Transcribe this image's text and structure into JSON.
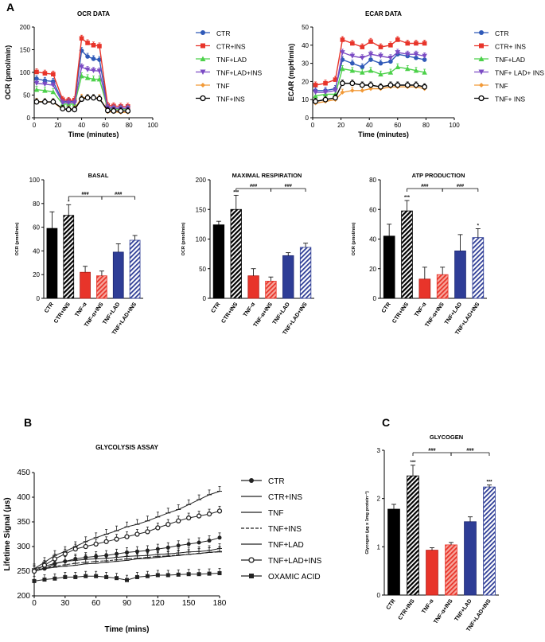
{
  "colors": {
    "black": "#000000",
    "blue": "#2f59b8",
    "red": "#e8342a",
    "green": "#4cd14a",
    "purple": "#7b4bc4",
    "orange": "#f29a38",
    "lightred": "#f7a79d",
    "lightblue": "#a9b8e6",
    "darkblue": "#2e3d96",
    "gray": "#555555"
  },
  "panels": {
    "a": "A",
    "b": "B",
    "c": "C"
  },
  "legends": {
    "ocr": [
      {
        "label": "CTR",
        "color": "#2f59b8",
        "marker": "circle"
      },
      {
        "label": "CTR+INS",
        "color": "#e8342a",
        "marker": "square"
      },
      {
        "label": "TNF+LAD",
        "color": "#4cd14a",
        "marker": "triangle-up"
      },
      {
        "label": "TNF+LAD+INS",
        "color": "#7b4bc4",
        "marker": "triangle-down"
      },
      {
        "label": "TNF",
        "color": "#f29a38",
        "marker": "diamond"
      },
      {
        "label": "TNF+INS",
        "color": "#000000",
        "marker": "open-circle"
      }
    ],
    "ecar": [
      {
        "label": "CTR",
        "color": "#2f59b8",
        "marker": "circle"
      },
      {
        "label": "CTR+ INS",
        "color": "#e8342a",
        "marker": "square"
      },
      {
        "label": "TNF+LAD",
        "color": "#4cd14a",
        "marker": "triangle-up"
      },
      {
        "label": "TNF+ LAD+ INS",
        "color": "#7b4bc4",
        "marker": "triangle-down"
      },
      {
        "label": "TNF",
        "color": "#f29a38",
        "marker": "diamond"
      },
      {
        "label": "TNF+ INS",
        "color": "#000000",
        "marker": "open-circle"
      }
    ],
    "glyco": [
      {
        "label": "CTR",
        "marker": "dot"
      },
      {
        "label": "CTR+INS",
        "marker": "line"
      },
      {
        "label": "TNF",
        "marker": "line"
      },
      {
        "label": "TNF+INS",
        "marker": "dash"
      },
      {
        "label": "TNF+LAD",
        "marker": "line"
      },
      {
        "label": "TNF+LAD+INS",
        "marker": "open-circle"
      },
      {
        "label": "OXAMIC ACID",
        "marker": "square"
      }
    ]
  },
  "chart_data": [
    {
      "id": "ocr",
      "type": "line",
      "title": "OCR DATA",
      "xlabel": "Time (minutes)",
      "ylabel": "OCR (pmol/min)",
      "xlim": [
        0,
        100
      ],
      "ylim": [
        0,
        200
      ],
      "xticks": [
        0,
        20,
        40,
        60,
        80,
        100
      ],
      "yticks": [
        0,
        50,
        100,
        150,
        200
      ],
      "x": [
        2,
        9,
        16,
        24,
        29,
        34,
        40,
        45,
        50,
        55,
        62,
        67,
        73,
        79
      ],
      "series": [
        {
          "name": "CTR",
          "color": "#2f59b8",
          "marker": "circle",
          "values": [
            86,
            82,
            80,
            36,
            36,
            36,
            148,
            135,
            130,
            128,
            23,
            22,
            21,
            20
          ]
        },
        {
          "name": "CTR+INS",
          "color": "#e8342a",
          "marker": "square",
          "values": [
            101,
            98,
            96,
            40,
            38,
            39,
            175,
            165,
            160,
            158,
            27,
            26,
            25,
            25
          ]
        },
        {
          "name": "TNF+LAD",
          "color": "#4cd14a",
          "marker": "triangle-up",
          "values": [
            62,
            60,
            57,
            30,
            30,
            30,
            92,
            88,
            85,
            85,
            20,
            19,
            19,
            19
          ]
        },
        {
          "name": "TNF+LAD+INS",
          "color": "#7b4bc4",
          "marker": "triangle-down",
          "values": [
            76,
            74,
            72,
            33,
            33,
            33,
            112,
            106,
            104,
            103,
            22,
            21,
            21,
            21
          ]
        },
        {
          "name": "TNF",
          "color": "#f29a38",
          "marker": "diamond",
          "values": [
            36,
            35,
            34,
            19,
            19,
            19,
            45,
            44,
            44,
            44,
            13,
            13,
            12,
            12
          ]
        },
        {
          "name": "TNF+INS",
          "color": "#000000",
          "marker": "open-circle",
          "values": [
            35,
            35,
            35,
            20,
            18,
            18,
            41,
            44,
            44,
            42,
            16,
            15,
            15,
            15
          ]
        }
      ]
    },
    {
      "id": "ecar",
      "type": "line",
      "title": "ECAR DATA",
      "xlabel": "Time (minutes)",
      "ylabel": "ECAR (mpH/min)",
      "xlim": [
        0,
        100
      ],
      "ylim": [
        0,
        50
      ],
      "xticks": [
        0,
        20,
        40,
        60,
        80,
        100
      ],
      "yticks": [
        0,
        10,
        20,
        30,
        40,
        50
      ],
      "x": [
        2,
        9,
        16,
        21,
        28,
        35,
        41,
        48,
        55,
        60,
        67,
        73,
        79
      ],
      "series": [
        {
          "name": "CTR",
          "color": "#2f59b8",
          "marker": "circle",
          "values": [
            15,
            15,
            16,
            32,
            30,
            28,
            32,
            30,
            31,
            35,
            34,
            33,
            32
          ]
        },
        {
          "name": "CTR+ INS",
          "color": "#e8342a",
          "marker": "square",
          "values": [
            18,
            19,
            21,
            43,
            41,
            39,
            42,
            39,
            40,
            43,
            41,
            41,
            41
          ]
        },
        {
          "name": "TNF+LAD",
          "color": "#4cd14a",
          "marker": "triangle-up",
          "values": [
            12,
            13,
            13,
            27,
            26,
            25,
            26,
            24,
            25,
            28,
            27,
            26,
            25
          ]
        },
        {
          "name": "TNF+ LAD+ INS",
          "color": "#7b4bc4",
          "marker": "triangle-down",
          "values": [
            14,
            14,
            15,
            36,
            34,
            33,
            35,
            34,
            33,
            36,
            35,
            35,
            34
          ]
        },
        {
          "name": "TNF",
          "color": "#f29a38",
          "marker": "diamond",
          "values": [
            8,
            9,
            10,
            14,
            15,
            15,
            16,
            16,
            17,
            17,
            17,
            17,
            16
          ]
        },
        {
          "name": "TNF+ INS",
          "color": "#000000",
          "marker": "open-circle",
          "values": [
            9,
            10,
            11,
            19,
            19,
            18,
            18,
            17,
            18,
            18,
            18,
            18,
            17
          ]
        }
      ]
    },
    {
      "id": "basal",
      "type": "bar",
      "title": "BASAL",
      "ylabel": "OCR (pmol/min)",
      "ylim": [
        0,
        100
      ],
      "yticks": [
        0,
        20,
        40,
        60,
        80,
        100
      ],
      "categories": [
        "CTR",
        "CTR+INS",
        "TNF-α",
        "TNF-α+INS",
        "TNF+LAD",
        "TNF+LAD+INS"
      ],
      "values": [
        59,
        70,
        22,
        19,
        39,
        49
      ],
      "errors": [
        14,
        9,
        5,
        4,
        7,
        4
      ],
      "styles": [
        "black",
        "black-hatch",
        "red",
        "red-hatch",
        "blue",
        "blue-hatch"
      ],
      "marks": [
        "",
        "*",
        "",
        "",
        "",
        ""
      ],
      "brackets": [
        {
          "label": "###",
          "from": 1,
          "to": 3
        },
        {
          "label": "###",
          "from": 3,
          "to": 5
        }
      ]
    },
    {
      "id": "maxresp",
      "type": "bar",
      "title": "MAXIMAL RESPIRATION",
      "ylabel": "OCR (pmol/min)",
      "ylim": [
        0,
        200
      ],
      "yticks": [
        0,
        50,
        100,
        150,
        200
      ],
      "categories": [
        "CTR",
        "CTR+INS",
        "TNF-α",
        "TNF-α+INS",
        "TNF+LAD",
        "TNF+LAD+INS"
      ],
      "values": [
        124,
        150,
        38,
        29,
        72,
        86
      ],
      "errors": [
        6,
        24,
        12,
        7,
        5,
        7
      ],
      "styles": [
        "black",
        "black-hatch",
        "red",
        "red-hatch",
        "blue",
        "blue-hatch"
      ],
      "marks": [
        "",
        "***",
        "",
        "",
        "",
        ""
      ],
      "brackets": [
        {
          "label": "###",
          "from": 1,
          "to": 3
        },
        {
          "label": "###",
          "from": 3,
          "to": 5
        }
      ]
    },
    {
      "id": "atp",
      "type": "bar",
      "title": "ATP PRODUCTION",
      "ylabel": "OCR (pmol/min)",
      "ylim": [
        0,
        80
      ],
      "yticks": [
        0,
        20,
        40,
        60,
        80
      ],
      "categories": [
        "CTR",
        "CTR+INS",
        "TNF-α",
        "TNF-α+INS",
        "TNF+LAD",
        "TNF+LAD+INS"
      ],
      "values": [
        42,
        59,
        13,
        16,
        32,
        41
      ],
      "errors": [
        8,
        7,
        8,
        5,
        11,
        6
      ],
      "styles": [
        "black",
        "black-hatch",
        "red",
        "red-hatch",
        "blue",
        "blue-hatch"
      ],
      "marks": [
        "",
        "***",
        "",
        "",
        "",
        "*"
      ],
      "brackets": [
        {
          "label": "###",
          "from": 1,
          "to": 3
        },
        {
          "label": "###",
          "from": 3,
          "to": 5
        }
      ]
    },
    {
      "id": "glycolysis",
      "type": "line",
      "title": "GLYCOLYSIS ASSAY",
      "xlabel": "Time (mins)",
      "ylabel": "Lifetime Signal (μs)",
      "xlim": [
        0,
        180
      ],
      "ylim": [
        200,
        450
      ],
      "xticks": [
        0,
        30,
        60,
        90,
        120,
        150,
        180
      ],
      "yticks": [
        200,
        250,
        300,
        350,
        400,
        450
      ],
      "x": [
        0,
        10,
        20,
        30,
        40,
        50,
        60,
        70,
        80,
        90,
        100,
        110,
        120,
        130,
        140,
        150,
        160,
        170,
        180
      ],
      "series": [
        {
          "name": "CTR",
          "marker": "dot",
          "values": [
            250,
            255,
            265,
            270,
            275,
            278,
            280,
            282,
            285,
            288,
            290,
            292,
            295,
            298,
            302,
            305,
            308,
            312,
            318
          ]
        },
        {
          "name": "CTR+INS",
          "marker": "line",
          "values": [
            255,
            268,
            282,
            290,
            300,
            310,
            318,
            325,
            332,
            340,
            345,
            352,
            360,
            368,
            375,
            385,
            395,
            405,
            412
          ]
        },
        {
          "name": "TNF",
          "marker": "line",
          "values": [
            250,
            255,
            258,
            260,
            262,
            265,
            266,
            268,
            270,
            272,
            275,
            276,
            278,
            280,
            282,
            284,
            286,
            288,
            290
          ]
        },
        {
          "name": "TNF+INS",
          "marker": "dash",
          "values": [
            252,
            256,
            260,
            263,
            266,
            268,
            270,
            271,
            273,
            275,
            276,
            278,
            280,
            281,
            283,
            284,
            286,
            288,
            289
          ]
        },
        {
          "name": "TNF+LAD",
          "marker": "line",
          "values": [
            255,
            260,
            266,
            270,
            272,
            274,
            275,
            276,
            278,
            280,
            281,
            282,
            284,
            285,
            287,
            289,
            290,
            292,
            296
          ]
        },
        {
          "name": "TNF+LAD+INS",
          "marker": "open-circle",
          "values": [
            250,
            262,
            275,
            285,
            295,
            300,
            305,
            310,
            315,
            320,
            325,
            330,
            338,
            345,
            352,
            358,
            362,
            366,
            372
          ]
        },
        {
          "name": "OXAMIC ACID",
          "marker": "square",
          "values": [
            230,
            233,
            235,
            238,
            238,
            240,
            240,
            238,
            236,
            232,
            238,
            240,
            242,
            242,
            243,
            244,
            244,
            245,
            246
          ]
        }
      ]
    },
    {
      "id": "glycogen",
      "type": "bar",
      "title": "GLYCOGEN",
      "ylabel": "Glycogen (μg x 1mg protein⁻¹)",
      "ylim": [
        0,
        3
      ],
      "yticks": [
        0,
        1,
        2,
        3
      ],
      "categories": [
        "CTR",
        "CTR+INS",
        "TNF-α",
        "TNF-α+INS",
        "TNF+LAD",
        "TNF+LAD+INS"
      ],
      "values": [
        1.78,
        2.47,
        0.93,
        1.04,
        1.52,
        2.24
      ],
      "errors": [
        0.1,
        0.22,
        0.05,
        0.05,
        0.1,
        0.04
      ],
      "styles": [
        "black",
        "black-hatch",
        "red",
        "red-hatch",
        "blue",
        "blue-hatch"
      ],
      "marks": [
        "",
        "***",
        "",
        "",
        "",
        "***"
      ],
      "brackets": [
        {
          "label": "###",
          "from": 1,
          "to": 3
        },
        {
          "label": "###",
          "from": 3,
          "to": 5
        }
      ]
    }
  ]
}
